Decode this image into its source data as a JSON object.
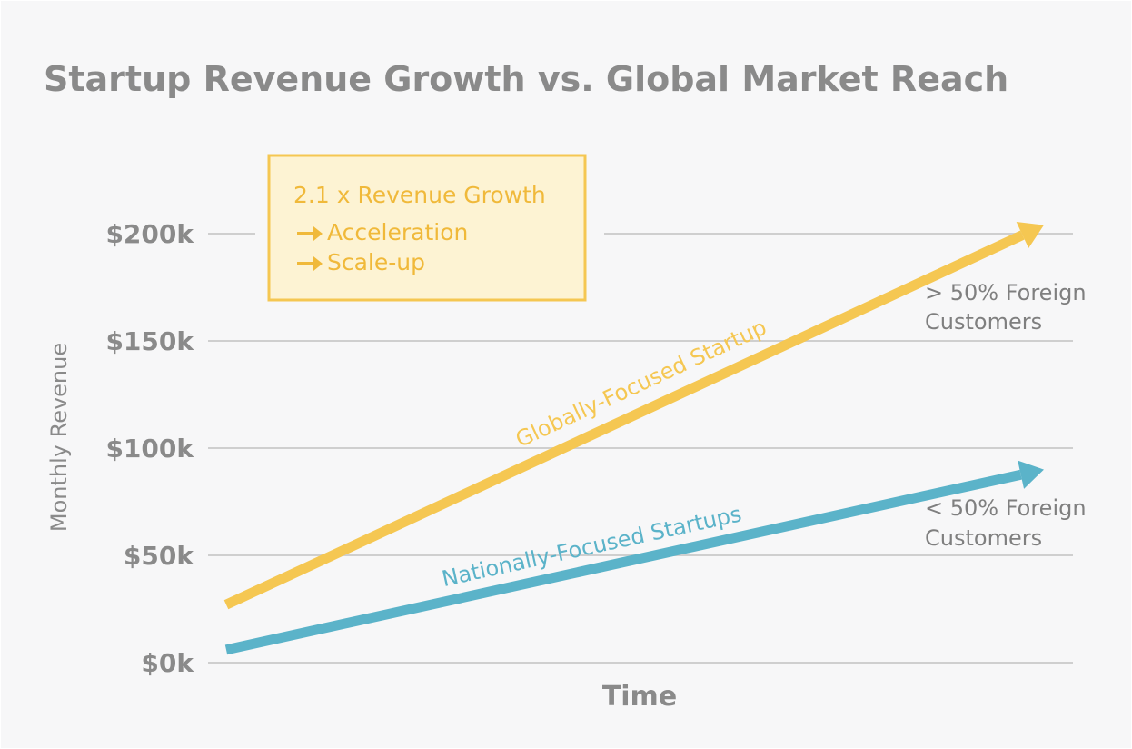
{
  "chart_data": {
    "type": "line",
    "title": "Startup Revenue Growth vs. Global Market Reach",
    "xlabel": "Time",
    "ylabel": "Monthly Revenue",
    "y_ticks": [
      "$0k",
      "$50k",
      "$100k",
      "$150k",
      "$200k"
    ],
    "y_tick_values": [
      0,
      50,
      100,
      150,
      200
    ],
    "ylim": [
      0,
      200
    ],
    "grid": true,
    "series": [
      {
        "name": "Globally-Focused Startup",
        "color": "#f5c752",
        "values": [
          27,
          204
        ],
        "end_annotation": [
          "> 50% Foreign",
          "Customers"
        ]
      },
      {
        "name": "Nationally-Focused Startups",
        "color": "#5bb3c9",
        "values": [
          6,
          90
        ],
        "end_annotation": [
          "< 50% Foreign",
          "Customers"
        ]
      }
    ],
    "callout": {
      "heading": "2.1 x Revenue Growth",
      "items": [
        "Acceleration",
        "Scale-up"
      ],
      "arrow_icon": "right-arrow-icon",
      "border_color": "#f5c752",
      "fill_color": "#fdf3d3"
    }
  }
}
